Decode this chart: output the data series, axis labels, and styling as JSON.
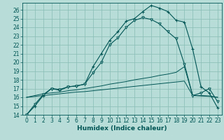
{
  "xlabel": "Humidex (Indice chaleur)",
  "xlim": [
    -0.5,
    23.5
  ],
  "ylim": [
    14,
    26.8
  ],
  "yticks": [
    14,
    15,
    16,
    17,
    18,
    19,
    20,
    21,
    22,
    23,
    24,
    25,
    26
  ],
  "xticks": [
    0,
    1,
    2,
    3,
    4,
    5,
    6,
    7,
    8,
    9,
    10,
    11,
    12,
    13,
    14,
    15,
    16,
    17,
    18,
    19,
    20,
    21,
    22,
    23
  ],
  "bg_color": "#b8ddd8",
  "grid_color": "#88bbb5",
  "line_color": "#005555",
  "curve1_x": [
    0,
    1,
    2,
    3,
    4,
    5,
    6,
    7,
    8,
    9,
    10,
    11,
    12,
    13,
    14,
    15,
    16,
    17,
    18,
    19,
    20,
    21,
    22,
    23
  ],
  "curve1_y": [
    14.0,
    15.0,
    16.2,
    17.0,
    16.8,
    17.2,
    17.3,
    17.5,
    19.5,
    21.0,
    22.5,
    23.5,
    24.7,
    25.0,
    25.8,
    26.5,
    26.2,
    25.8,
    24.8,
    24.6,
    21.5,
    17.2,
    16.5,
    14.8
  ],
  "curve2_x": [
    0,
    1,
    2,
    3,
    4,
    5,
    6,
    7,
    8,
    9,
    10,
    11,
    12,
    13,
    14,
    15,
    16,
    17,
    18,
    19,
    20,
    21,
    22,
    23
  ],
  "curve2_y": [
    14.0,
    15.2,
    16.3,
    17.0,
    16.9,
    17.2,
    17.3,
    17.5,
    18.8,
    20.0,
    22.0,
    22.8,
    24.0,
    24.8,
    25.1,
    24.9,
    24.4,
    23.5,
    22.7,
    19.8,
    16.2,
    16.5,
    17.0,
    15.5
  ],
  "line1_x": [
    0,
    1,
    2,
    3,
    4,
    5,
    6,
    7,
    8,
    9,
    10,
    11,
    12,
    13,
    14,
    15,
    16,
    17,
    18,
    19,
    20,
    21,
    22,
    23
  ],
  "line1_y": [
    16.0,
    16.2,
    16.4,
    16.5,
    16.6,
    16.75,
    16.85,
    17.0,
    17.15,
    17.3,
    17.5,
    17.65,
    17.8,
    18.0,
    18.15,
    18.3,
    18.5,
    18.65,
    18.85,
    19.5,
    16.2,
    16.2,
    16.15,
    16.0
  ],
  "line2_x": [
    0,
    1,
    2,
    3,
    4,
    5,
    6,
    7,
    8,
    9,
    10,
    11,
    12,
    13,
    14,
    15,
    16,
    17,
    18,
    19,
    20,
    21,
    22,
    23
  ],
  "line2_y": [
    16.0,
    16.1,
    16.2,
    16.3,
    16.4,
    16.5,
    16.6,
    16.65,
    16.75,
    16.85,
    16.95,
    17.05,
    17.15,
    17.25,
    17.35,
    17.45,
    17.55,
    17.65,
    17.75,
    17.85,
    16.2,
    16.15,
    16.1,
    16.0
  ],
  "tick_fontsize": 5.5,
  "xlabel_fontsize": 6.5
}
